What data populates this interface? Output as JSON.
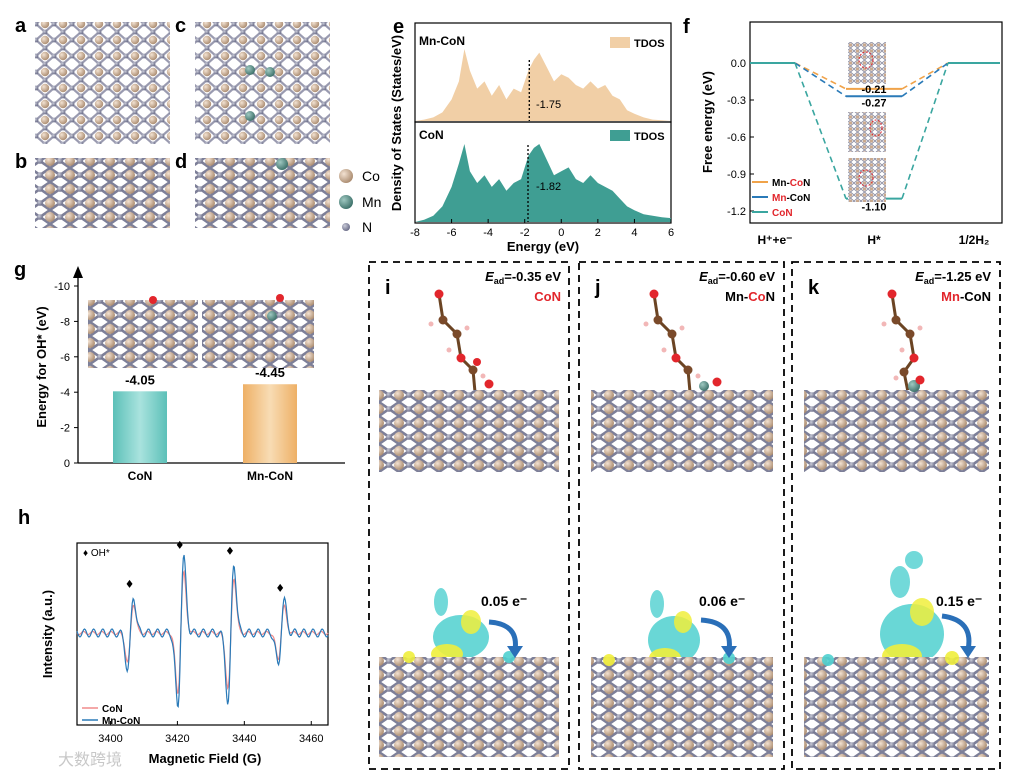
{
  "panels": {
    "a": "a",
    "b": "b",
    "c": "c",
    "d": "d",
    "e": "e",
    "f": "f",
    "g": "g",
    "h": "h",
    "i": "i",
    "j": "j",
    "k": "k"
  },
  "legend_atoms": [
    {
      "label": "Co",
      "color": "#c9a98e"
    },
    {
      "label": "Mn",
      "color": "#5b8f86"
    },
    {
      "label": "N",
      "color": "#8e8fa3"
    }
  ],
  "colors": {
    "tdos_mnco": "#f1cfa6",
    "tdos_con": "#3f9e93",
    "teal": "#1f8a8a",
    "orange": "#f0a34a",
    "blue": "#2a7ab8",
    "red": "#e2262c"
  },
  "chart_data": [
    {
      "id": "e",
      "type": "area",
      "title": "",
      "xlabel": "Energy (eV)",
      "ylabel": "Density of States (States/eV)",
      "xlim": [
        -8,
        6
      ],
      "xticks": [
        -8,
        -6,
        -4,
        -2,
        0,
        2,
        4,
        6
      ],
      "series": [
        {
          "name": "Mn-CoN",
          "legend": "TDOS",
          "d_band_center": -1.75,
          "d_band_label": "-1.75",
          "x": [
            -8,
            -7.5,
            -7,
            -6.5,
            -6,
            -5.6,
            -5.3,
            -5,
            -4.6,
            -4.2,
            -3.8,
            -3.4,
            -3,
            -2.6,
            -2.2,
            -1.8,
            -1.5,
            -1.2,
            -0.8,
            -0.4,
            0,
            0.4,
            0.8,
            1.2,
            1.6,
            2,
            2.4,
            2.8,
            3.2,
            3.6,
            4,
            4.5,
            5,
            5.5,
            6
          ],
          "y": [
            0,
            0.02,
            0.05,
            0.12,
            0.3,
            0.55,
            1.0,
            0.7,
            0.45,
            0.55,
            0.35,
            0.5,
            0.3,
            0.45,
            0.4,
            0.7,
            0.85,
            0.95,
            0.75,
            0.55,
            0.65,
            0.6,
            0.5,
            0.45,
            0.55,
            0.45,
            0.5,
            0.35,
            0.3,
            0.15,
            0.1,
            0.05,
            0.02,
            0.01,
            0
          ]
        },
        {
          "name": "CoN",
          "legend": "TDOS",
          "d_band_center": -1.82,
          "d_band_label": "-1.82",
          "x": [
            -8,
            -7.5,
            -7,
            -6.5,
            -6,
            -5.6,
            -5.3,
            -5,
            -4.6,
            -4.2,
            -3.8,
            -3.4,
            -3,
            -2.6,
            -2.2,
            -1.8,
            -1.5,
            -1.2,
            -0.8,
            -0.4,
            0,
            0.4,
            0.8,
            1.2,
            1.6,
            2,
            2.4,
            2.8,
            3.2,
            3.6,
            4,
            4.5,
            5,
            5.5,
            6
          ],
          "y": [
            0,
            0.03,
            0.08,
            0.2,
            0.45,
            0.75,
            1.0,
            0.65,
            0.5,
            0.6,
            0.45,
            0.55,
            0.4,
            0.5,
            0.55,
            0.85,
            0.95,
            1.0,
            0.8,
            0.6,
            0.65,
            0.7,
            0.55,
            0.5,
            0.6,
            0.5,
            0.45,
            0.4,
            0.3,
            0.2,
            0.15,
            0.1,
            0.08,
            0.06,
            0.05
          ]
        }
      ]
    },
    {
      "id": "f",
      "type": "line",
      "title": "",
      "xlabel": "",
      "ylabel": "Free energy (eV)",
      "categories": [
        "H⁺+e⁻",
        "H*",
        "1/2H₂"
      ],
      "ylim": [
        -1.2,
        0.1
      ],
      "yticks": [
        0.0,
        -0.3,
        -0.6,
        -0.9,
        -1.2
      ],
      "ytick_labels": [
        "0.0",
        "-0.3",
        "-0.6",
        "-0.9",
        "-1.2"
      ],
      "series": [
        {
          "legend_parts": [
            "Mn-",
            "Co",
            "N"
          ],
          "color": "#f0a34a",
          "values": [
            0,
            -0.21,
            0
          ],
          "label": "-0.21"
        },
        {
          "legend_parts": [
            "Mn",
            "-CoN"
          ],
          "color": "#2a7ab8",
          "values": [
            0,
            -0.27,
            0
          ],
          "label": "-0.27"
        },
        {
          "legend_parts": [
            "CoN"
          ],
          "color": "#3aa6a0",
          "values": [
            0,
            -1.1,
            0
          ],
          "label": "-1.10"
        }
      ]
    },
    {
      "id": "g",
      "type": "bar",
      "title": "",
      "xlabel": "",
      "ylabel": "Energy for OH* (eV)",
      "categories": [
        "CoN",
        "Mn-CoN"
      ],
      "values": [
        -4.05,
        -4.45
      ],
      "value_labels": [
        "-4.05",
        "-4.45"
      ],
      "ylim": [
        0,
        -10
      ],
      "yticks": [
        0,
        -2,
        -4,
        -6,
        -8,
        -10
      ],
      "ytick_labels": [
        "0",
        "-2",
        "-4",
        "-6",
        "-8",
        "-10"
      ],
      "colors": [
        "#6fcbc4",
        "#f2be7c"
      ]
    },
    {
      "id": "h",
      "type": "line",
      "title": "",
      "xlabel": "Magnetic Field (G)",
      "ylabel": "Intensity (a.u.)",
      "xlim": [
        3390,
        3465
      ],
      "xticks": [
        3400,
        3420,
        3440,
        3460
      ],
      "xtick_labels": [
        "3400",
        "3420",
        "3440",
        "3460"
      ],
      "marker_label": "♦ OH*",
      "peaks": [
        3406,
        3421,
        3436,
        3451
      ],
      "series": [
        {
          "name": "CoN",
          "color": "#f08a8a",
          "amplitude": 0.8
        },
        {
          "name": "Mn-CoN",
          "color": "#2a7ab8",
          "amplitude": 1.0
        }
      ]
    }
  ],
  "adsorption": [
    {
      "panel": "i",
      "ead_prefix": "E",
      "ead_sub": "ad",
      "ead_value": "=-0.35 eV",
      "label_parts": [
        {
          "t": "CoN",
          "c": "#e2262c"
        }
      ],
      "charge": "0.05 e⁻"
    },
    {
      "panel": "j",
      "ead_prefix": "E",
      "ead_sub": "ad",
      "ead_value": "=-0.60 eV",
      "label_parts": [
        {
          "t": "Mn-",
          "c": "#111"
        },
        {
          "t": "Co",
          "c": "#e2262c"
        },
        {
          "t": "N",
          "c": "#111"
        }
      ],
      "charge": "0.06 e⁻"
    },
    {
      "panel": "k",
      "ead_prefix": "E",
      "ead_sub": "ad",
      "ead_value": "=-1.25 eV",
      "label_parts": [
        {
          "t": "Mn",
          "c": "#e2262c"
        },
        {
          "t": "-CoN",
          "c": "#111"
        }
      ],
      "charge": "0.15 e⁻"
    }
  ],
  "watermark": "大数跨境"
}
